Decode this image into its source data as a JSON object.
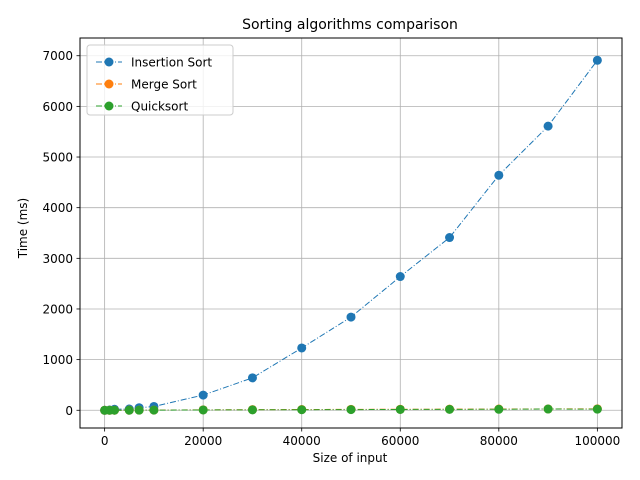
{
  "chart_data": {
    "type": "line",
    "title": "Sorting algorithms comparison",
    "xlabel": "Size of input",
    "ylabel": "Time (ms)",
    "xlim": [
      -5000,
      105000
    ],
    "ylim": [
      -350,
      7350
    ],
    "xticks": [
      0,
      20000,
      40000,
      60000,
      80000,
      100000
    ],
    "yticks": [
      0,
      1000,
      2000,
      3000,
      4000,
      5000,
      6000,
      7000
    ],
    "grid": true,
    "legend_position": "top-left",
    "x": [
      0,
      1000,
      2000,
      5000,
      7000,
      10000,
      20000,
      30000,
      40000,
      50000,
      60000,
      70000,
      80000,
      90000,
      100000
    ],
    "series": [
      {
        "name": "Insertion Sort",
        "color": "#1f77b4",
        "values": [
          0,
          5,
          20,
          25,
          50,
          75,
          300,
          640,
          1230,
          1840,
          2640,
          3410,
          4640,
          5610,
          6910
        ]
      },
      {
        "name": "Merge Sort",
        "color": "#ff7f0e",
        "values": [
          0,
          0,
          1,
          2,
          3,
          4,
          8,
          12,
          15,
          18,
          20,
          22,
          24,
          26,
          28
        ]
      },
      {
        "name": "Quicksort",
        "color": "#2ca02c",
        "values": [
          0,
          0,
          1,
          1,
          2,
          3,
          6,
          9,
          11,
          13,
          16,
          18,
          20,
          25,
          22
        ]
      }
    ]
  }
}
